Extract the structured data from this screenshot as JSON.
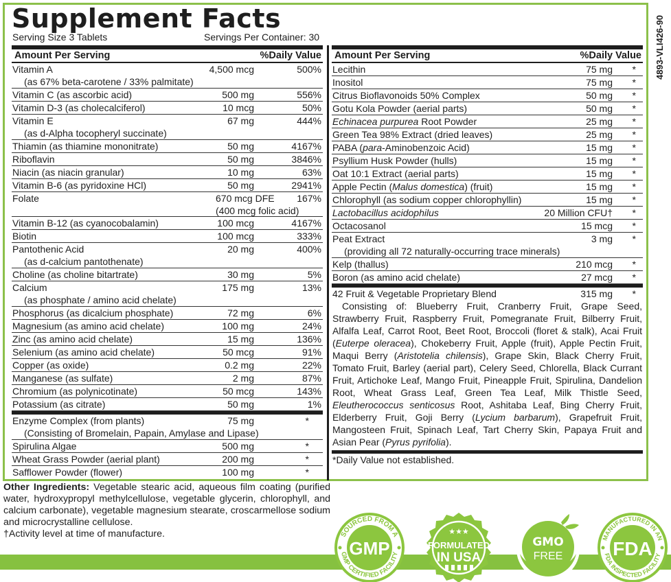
{
  "title": "Supplement Facts",
  "serving_size": "Serving Size 3 Tablets",
  "servings_per_container": "Servings Per Container: 30",
  "product_code": "4893-VLI426-90",
  "colors": {
    "accent_green": "#86c140",
    "text": "#1e1e1e"
  },
  "table_header": {
    "amount": "Amount Per Serving",
    "daily_value": "%Daily Value"
  },
  "left": {
    "rows": [
      {
        "name": "Vitamin A",
        "sub": "(as 67% beta-carotene / 33% palmitate)",
        "amount": "4,500 mcg",
        "dv": "500%"
      },
      {
        "name": "Vitamin C (as ascorbic acid)",
        "amount": "500 mg",
        "dv": "556%"
      },
      {
        "name": "Vitamin D-3 (as cholecalciferol)",
        "amount": "10 mcg",
        "dv": "50%"
      },
      {
        "name": "Vitamin E",
        "sub": "(as d-Alpha tocopheryl succinate)",
        "amount": "67 mg",
        "dv": "444%"
      },
      {
        "name": "Thiamin (as thiamine mononitrate)",
        "amount": "50 mg",
        "dv": "4167%"
      },
      {
        "name": "Riboflavin",
        "amount": "50 mg",
        "dv": "3846%"
      },
      {
        "name": "Niacin (as niacin granular)",
        "amount": "10 mg",
        "dv": "63%"
      },
      {
        "name": "Vitamin B-6 (as pyridoxine HCl)",
        "amount": "50 mg",
        "dv": "2941%"
      },
      {
        "name": "Folate",
        "amount": "670 mcg DFE",
        "amount_sub": "(400 mcg folic acid)",
        "dv": "167%"
      },
      {
        "name": "Vitamin B-12 (as cyanocobalamin)",
        "amount": "100 mcg",
        "dv": "4167%"
      },
      {
        "name": "Biotin",
        "amount": "100 mcg",
        "dv": "333%"
      },
      {
        "name": "Pantothenic Acid",
        "sub": "(as d-calcium pantothenate)",
        "amount": "20 mg",
        "dv": "400%"
      },
      {
        "name": "Choline (as choline bitartrate)",
        "amount": "30 mg",
        "dv": "5%"
      },
      {
        "name": "Calcium",
        "sub": "(as phosphate / amino acid chelate)",
        "amount": "175 mg",
        "dv": "13%"
      },
      {
        "name": "Phosphorus (as dicalcium phosphate)",
        "amount": "72 mg",
        "dv": "6%"
      },
      {
        "name": "Magnesium (as amino acid chelate)",
        "amount": "100 mg",
        "dv": "24%"
      },
      {
        "name": "Zinc (as amino acid chelate)",
        "amount": "15 mg",
        "dv": "136%"
      },
      {
        "name": "Selenium (as amino acid chelate)",
        "amount": "50 mcg",
        "dv": "91%"
      },
      {
        "name": "Copper (as oxide)",
        "amount": "0.2 mg",
        "dv": "22%"
      },
      {
        "name": "Manganese (as sulfate)",
        "amount": "2 mg",
        "dv": "87%"
      },
      {
        "name": "Chromium (as polynicotinate)",
        "amount": "50 mcg",
        "dv": "143%"
      },
      {
        "name": "Potassium (as citrate)",
        "amount": "50 mg",
        "dv": "1%"
      }
    ],
    "other_rows": [
      {
        "name": "Enzyme Complex (from plants)",
        "sub": "(Consisting of Bromelain, Papain, Amylase and Lipase)",
        "amount": "75 mg",
        "dv": "*"
      },
      {
        "name": "Spirulina Algae",
        "amount": "500 mg",
        "dv": "*"
      },
      {
        "name": "Wheat Grass Powder (aerial plant)",
        "amount": "200 mg",
        "dv": "*"
      },
      {
        "name": "Safflower Powder (flower)",
        "amount": "100 mg",
        "dv": "*"
      }
    ]
  },
  "right": {
    "rows": [
      {
        "name": "Lecithin",
        "amount": "75 mg",
        "dv": "*"
      },
      {
        "name": "Inositol",
        "amount": "75 mg",
        "dv": "*"
      },
      {
        "name": "Citrus Bioflavonoids 50% Complex",
        "amount": "50 mg",
        "dv": "*"
      },
      {
        "name": "Gotu Kola Powder (aerial parts)",
        "amount": "50 mg",
        "dv": "*"
      },
      {
        "name_italic": "Echinacea purpurea",
        "name_rest": " Root Powder",
        "amount": "25 mg",
        "dv": "*"
      },
      {
        "name": "Green Tea 98% Extract (dried leaves)",
        "amount": "25 mg",
        "dv": "*"
      },
      {
        "name_pre": "PABA (",
        "name_italic": "para",
        "name_rest": "-Aminobenzoic Acid)",
        "amount": "15 mg",
        "dv": "*"
      },
      {
        "name": "Psyllium Husk Powder (hulls)",
        "amount": "15 mg",
        "dv": "*"
      },
      {
        "name": "Oat 10:1 Extract (aerial parts)",
        "amount": "15 mg",
        "dv": "*"
      },
      {
        "name_pre": "Apple Pectin (",
        "name_italic": "Malus domestica",
        "name_rest": ") (fruit)",
        "amount": "15 mg",
        "dv": "*"
      },
      {
        "name": "Chlorophyll (as sodium copper chlorophyllin)",
        "amount": "15 mg",
        "dv": "*"
      },
      {
        "name_italic": "Lactobacillus acidophilus",
        "amount": "20 Million CFU†",
        "dv": "*"
      },
      {
        "name": "Octacosanol",
        "amount": "15 mcg",
        "dv": "*"
      },
      {
        "name": "Peat Extract",
        "sub": "(providing all 72 naturally-occurring trace minerals)",
        "amount": "3 mg",
        "dv": "*"
      },
      {
        "name": "Kelp (thallus)",
        "amount": "210 mcg",
        "dv": "*"
      },
      {
        "name": "Boron (as amino acid chelate)",
        "amount": "27 mcg",
        "dv": "*"
      }
    ],
    "blend": {
      "name": "42 Fruit & Vegetable Proprietary Blend",
      "amount": "315 mg",
      "dv": "*",
      "parts": [
        "Consisting of: Blueberry Fruit, Cranberry Fruit, Grape Seed, Strawberry Fruit, Raspberry Fruit, Pomegranate Fruit, Bilberry Fruit, Alfalfa Leaf, Carrot Root, Beet Root, Broccoli (floret & stalk), Acai Fruit (",
        "Euterpe oleracea",
        "), Chokeberry Fruit, Apple (fruit), Apple Pectin Fruit, Maqui Berry (",
        "Aristotelia chilensis",
        "), Grape Skin, Black Cherry Fruit, Tomato Fruit, Barley (aerial part), Celery Seed, Chlorella, Black Currant Fruit, Artichoke Leaf, Mango Fruit, Pineapple Fruit, Spirulina, Dandelion Root, Wheat Grass Leaf, Green Tea Leaf, Milk Thistle Seed, ",
        "Eleutherococcus senticosus",
        " Root, Ashitaba Leaf, Bing Cherry Fruit, Elderberry Fruit, Goji Berry (",
        "Lycium barbarum",
        "), Grapefruit Fruit, Mangosteen Fruit, Spinach Leaf, Tart Cherry Skin, Papaya Fruit and Asian Pear (",
        "Pyrus pyrifolia",
        ")."
      ]
    },
    "footnote": "*Daily Value not established."
  },
  "other_ingredients": {
    "label": "Other Ingredients:",
    "text": " Vegetable stearic acid, aqueous film coating (purified water, hydroxypropyl methylcellulose, vegetable glycerin, chlorophyll, and calcium carbonate), vegetable magnesium stearate, croscarmellose sodium and microcrystalline cellulose."
  },
  "activity_note": "†Activity level at time of manufacture.",
  "badges": [
    {
      "id": "gmp",
      "top_text": "SOURCED FROM A",
      "center": "GMP",
      "bottom_text": "GMP CERTIFIED FACILITY"
    },
    {
      "id": "usa",
      "line1": "FORMULATED",
      "line2": "IN USA"
    },
    {
      "id": "gmo",
      "line1": "GMO",
      "line2": "FREE"
    },
    {
      "id": "fda",
      "top_text": "MANUFACTURED IN AN",
      "center": "FDA",
      "bottom_text": "FDA INSPECTED FACILITY"
    }
  ]
}
